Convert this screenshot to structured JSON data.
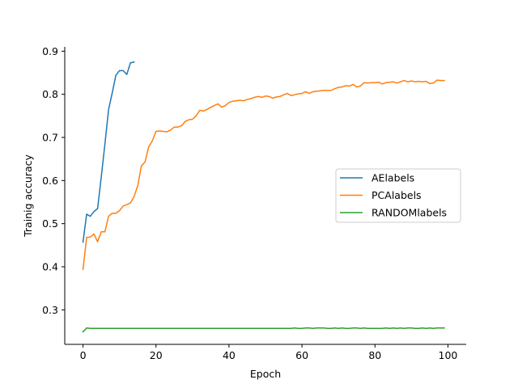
{
  "chart_data": {
    "type": "line",
    "xlabel": "Epoch",
    "ylabel": "Trainig accuracy",
    "xlim": [
      -5,
      105
    ],
    "ylim": [
      0.22,
      0.91
    ],
    "xticks": [
      0,
      20,
      40,
      60,
      80,
      100
    ],
    "xtick_labels": [
      "0",
      "20",
      "40",
      "60",
      "80",
      "100"
    ],
    "yticks": [
      0.3,
      0.4,
      0.5,
      0.6,
      0.7,
      0.8,
      0.9
    ],
    "ytick_labels": [
      "0.3",
      "0.4",
      "0.5",
      "0.6",
      "0.7",
      "0.8",
      "0.9"
    ],
    "grid": false,
    "legend_position": "center-right",
    "series": [
      {
        "name": "AElabels",
        "color": "#1f77b4",
        "x": [
          0,
          1,
          2,
          3,
          4,
          5,
          6,
          7,
          8,
          9,
          10,
          11,
          12,
          13,
          14
        ],
        "y": [
          0.457,
          0.522,
          0.517,
          0.528,
          0.535,
          0.608,
          0.684,
          0.764,
          0.803,
          0.844,
          0.855,
          0.855,
          0.846,
          0.873,
          0.875
        ]
      },
      {
        "name": "PCAlabels",
        "color": "#ff7f0e",
        "x": [
          0,
          1,
          2,
          3,
          4,
          5,
          6,
          7,
          8,
          9,
          10,
          11,
          12,
          13,
          14,
          15,
          16,
          17,
          18,
          19,
          20,
          21,
          22,
          23,
          24,
          25,
          26,
          27,
          28,
          29,
          30,
          31,
          32,
          33,
          34,
          35,
          36,
          37,
          38,
          39,
          40,
          41,
          42,
          43,
          44,
          45,
          46,
          47,
          48,
          49,
          50,
          51,
          52,
          53,
          54,
          55,
          56,
          57,
          58,
          59,
          60,
          61,
          62,
          63,
          64,
          65,
          66,
          67,
          68,
          69,
          70,
          71,
          72,
          73,
          74,
          75,
          76,
          77,
          78,
          79,
          80,
          81,
          82,
          83,
          84,
          85,
          86,
          87,
          88,
          89,
          90,
          91,
          92,
          93,
          94,
          95,
          96,
          97,
          98,
          99
        ],
        "y": [
          0.394,
          0.468,
          0.469,
          0.476,
          0.458,
          0.481,
          0.481,
          0.517,
          0.524,
          0.524,
          0.53,
          0.541,
          0.544,
          0.548,
          0.563,
          0.588,
          0.634,
          0.643,
          0.678,
          0.692,
          0.714,
          0.715,
          0.714,
          0.713,
          0.717,
          0.724,
          0.724,
          0.727,
          0.737,
          0.741,
          0.742,
          0.75,
          0.763,
          0.761,
          0.765,
          0.77,
          0.774,
          0.778,
          0.77,
          0.774,
          0.781,
          0.784,
          0.785,
          0.786,
          0.785,
          0.788,
          0.79,
          0.793,
          0.795,
          0.793,
          0.796,
          0.795,
          0.791,
          0.794,
          0.795,
          0.799,
          0.802,
          0.797,
          0.799,
          0.801,
          0.802,
          0.806,
          0.802,
          0.806,
          0.807,
          0.808,
          0.809,
          0.809,
          0.809,
          0.813,
          0.816,
          0.817,
          0.82,
          0.819,
          0.823,
          0.817,
          0.819,
          0.827,
          0.826,
          0.827,
          0.827,
          0.828,
          0.824,
          0.827,
          0.828,
          0.829,
          0.826,
          0.829,
          0.832,
          0.829,
          0.831,
          0.829,
          0.83,
          0.829,
          0.83,
          0.825,
          0.826,
          0.833,
          0.832,
          0.832
        ]
      },
      {
        "name": "RANDOMlabels",
        "color": "#2ca02c",
        "x": [
          0,
          1,
          2,
          3,
          4,
          5,
          6,
          7,
          8,
          9,
          10,
          11,
          12,
          13,
          14,
          15,
          16,
          17,
          18,
          19,
          20,
          21,
          22,
          23,
          24,
          25,
          26,
          27,
          28,
          29,
          30,
          31,
          32,
          33,
          34,
          35,
          36,
          37,
          38,
          39,
          40,
          41,
          42,
          43,
          44,
          45,
          46,
          47,
          48,
          49,
          50,
          51,
          52,
          53,
          54,
          55,
          56,
          57,
          58,
          59,
          60,
          61,
          62,
          63,
          64,
          65,
          66,
          67,
          68,
          69,
          70,
          71,
          72,
          73,
          74,
          75,
          76,
          77,
          78,
          79,
          80,
          81,
          82,
          83,
          84,
          85,
          86,
          87,
          88,
          89,
          90,
          91,
          92,
          93,
          94,
          95,
          96,
          97,
          98,
          99
        ],
        "y": [
          0.249,
          0.258,
          0.257,
          0.257,
          0.257,
          0.257,
          0.257,
          0.257,
          0.257,
          0.257,
          0.257,
          0.257,
          0.257,
          0.257,
          0.257,
          0.257,
          0.257,
          0.257,
          0.257,
          0.257,
          0.257,
          0.257,
          0.257,
          0.257,
          0.257,
          0.257,
          0.257,
          0.257,
          0.257,
          0.257,
          0.257,
          0.257,
          0.257,
          0.257,
          0.257,
          0.257,
          0.257,
          0.257,
          0.257,
          0.257,
          0.257,
          0.257,
          0.257,
          0.257,
          0.257,
          0.257,
          0.257,
          0.257,
          0.257,
          0.257,
          0.257,
          0.257,
          0.257,
          0.257,
          0.257,
          0.257,
          0.257,
          0.257,
          0.258,
          0.257,
          0.257,
          0.258,
          0.258,
          0.257,
          0.258,
          0.258,
          0.258,
          0.257,
          0.257,
          0.258,
          0.257,
          0.258,
          0.257,
          0.257,
          0.258,
          0.258,
          0.257,
          0.258,
          0.257,
          0.257,
          0.257,
          0.257,
          0.257,
          0.258,
          0.257,
          0.258,
          0.257,
          0.258,
          0.257,
          0.258,
          0.258,
          0.257,
          0.257,
          0.258,
          0.257,
          0.258,
          0.257,
          0.258,
          0.258,
          0.258
        ]
      }
    ]
  }
}
